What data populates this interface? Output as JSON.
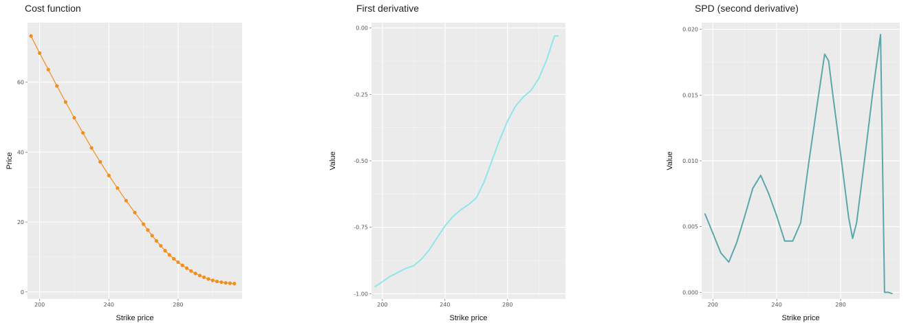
{
  "chart_data": [
    {
      "type": "line",
      "title": "Cost function",
      "xlabel": "Strike price",
      "ylabel": "Price",
      "xlim": [
        193,
        317
      ],
      "ylim": [
        -2,
        77
      ],
      "xticks": [
        200,
        240,
        280
      ],
      "xtick_labels": [
        "200",
        "240",
        "280"
      ],
      "yticks": [
        0,
        20,
        40,
        60
      ],
      "ytick_labels": [
        "0",
        "20",
        "40",
        "60"
      ],
      "grid": true,
      "markers": true,
      "color": "#f28e1c",
      "series": [
        {
          "x": [
            195,
            200,
            205,
            210,
            215,
            220,
            225,
            230,
            235,
            240,
            245,
            250,
            255,
            260,
            262.5,
            265,
            267.5,
            270,
            272.5,
            275,
            277.5,
            280,
            282.5,
            285,
            287.5,
            290,
            292.5,
            295,
            297.5,
            300,
            302.5,
            305,
            307.5,
            310,
            312.5
          ],
          "y": [
            73.2,
            68.3,
            63.6,
            58.9,
            54.3,
            49.8,
            45.5,
            41.2,
            37.2,
            33.3,
            29.7,
            26.1,
            22.7,
            19.4,
            17.7,
            16.1,
            14.6,
            13.2,
            11.8,
            10.6,
            9.5,
            8.5,
            7.6,
            6.8,
            6.0,
            5.3,
            4.7,
            4.2,
            3.7,
            3.3,
            3.0,
            2.8,
            2.6,
            2.5,
            2.4
          ]
        }
      ]
    },
    {
      "type": "line",
      "title": "First derivative",
      "xlabel": "Strike price",
      "ylabel": "Value",
      "xlim": [
        193,
        317
      ],
      "ylim": [
        -1.02,
        0.02
      ],
      "xticks": [
        200,
        240,
        280
      ],
      "xtick_labels": [
        "200",
        "240",
        "280"
      ],
      "yticks": [
        0,
        -0.25,
        -0.5,
        -0.75,
        -1.0
      ],
      "ytick_labels": [
        "0.00",
        "-0.25",
        "-0.50",
        "-0.75",
        "-1.00"
      ],
      "grid": true,
      "markers": false,
      "color": "#8fe6ea",
      "series": [
        {
          "x": [
            195,
            200,
            205,
            210,
            215,
            220,
            225,
            230,
            235,
            240,
            245,
            250,
            255,
            260,
            265,
            270,
            275,
            280,
            285,
            290,
            295,
            300,
            305,
            310,
            312.5
          ],
          "y": [
            -0.975,
            -0.955,
            -0.935,
            -0.92,
            -0.905,
            -0.895,
            -0.87,
            -0.835,
            -0.79,
            -0.745,
            -0.71,
            -0.685,
            -0.665,
            -0.64,
            -0.58,
            -0.5,
            -0.42,
            -0.35,
            -0.295,
            -0.26,
            -0.235,
            -0.19,
            -0.12,
            -0.03,
            -0.03
          ]
        }
      ]
    },
    {
      "type": "line",
      "title": "SPD (second derivative)",
      "xlabel": "Strike price",
      "ylabel": "Value",
      "xlim": [
        193,
        317
      ],
      "ylim": [
        -0.0005,
        0.0205
      ],
      "xticks": [
        200,
        240,
        280
      ],
      "xtick_labels": [
        "200",
        "240",
        "280"
      ],
      "yticks": [
        0,
        0.005,
        0.01,
        0.015,
        0.02
      ],
      "ytick_labels": [
        "0.000",
        "0.005",
        "0.010",
        "0.015",
        "0.020"
      ],
      "grid": true,
      "markers": false,
      "color": "#5aa7ab",
      "series": [
        {
          "x": [
            195,
            200,
            205,
            210,
            215,
            220,
            225,
            230,
            235,
            240,
            245,
            250,
            255,
            260,
            265,
            270,
            272.5,
            275,
            280,
            285,
            287.5,
            290,
            295,
            300,
            305,
            307.5,
            310,
            312.5
          ],
          "y": [
            0.006,
            0.0045,
            0.003,
            0.0023,
            0.0038,
            0.0058,
            0.0079,
            0.0089,
            0.0075,
            0.0058,
            0.0039,
            0.0039,
            0.0053,
            0.0098,
            0.014,
            0.0181,
            0.0176,
            0.0151,
            0.0105,
            0.0057,
            0.0041,
            0.0053,
            0.0101,
            0.0151,
            0.0196,
            0.0,
            0.0,
            -0.0001
          ]
        }
      ]
    }
  ]
}
